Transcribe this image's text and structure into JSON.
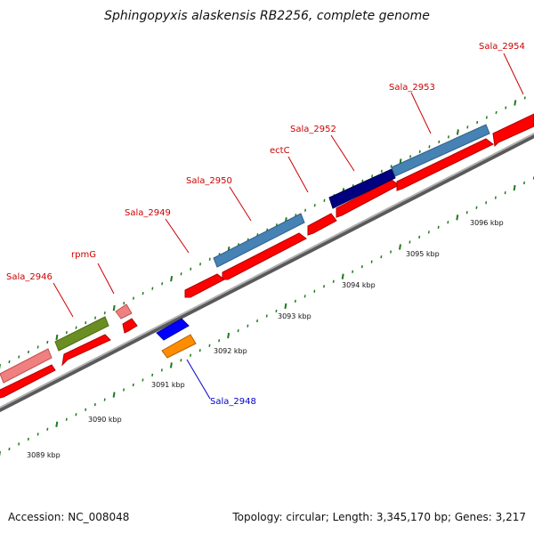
{
  "title": "Sphingopyxis alaskensis RB2256, complete genome",
  "footer": {
    "accession": "Accession: NC_008048",
    "summary": "Topology: circular; Length: 3,345,170 bp; Genes: 3,217"
  },
  "colors": {
    "backbone": "#8c8c8c",
    "tick": "#1e7a1e",
    "cds_forward": "#ff0000",
    "label_default": "#cc0000",
    "label_reverse": "#0000cc"
  },
  "gene_labels": [
    {
      "id": "sala-2946",
      "text": "Sala_2946",
      "color": "#cc0000"
    },
    {
      "id": "rpmg",
      "text": "rpmG",
      "color": "#cc0000"
    },
    {
      "id": "sala-2949",
      "text": "Sala_2949",
      "color": "#cc0000"
    },
    {
      "id": "sala-2950",
      "text": "Sala_2950",
      "color": "#cc0000"
    },
    {
      "id": "ectc",
      "text": "ectC",
      "color": "#cc0000"
    },
    {
      "id": "sala-2952",
      "text": "Sala_2952",
      "color": "#cc0000"
    },
    {
      "id": "sala-2953",
      "text": "Sala_2953",
      "color": "#cc0000"
    },
    {
      "id": "sala-2954",
      "text": "Sala_2954",
      "color": "#cc0000"
    },
    {
      "id": "sala-2948",
      "text": "Sala_2948",
      "color": "#0000cc"
    }
  ],
  "scale_labels": [
    "3089 kbp",
    "3090 kbp",
    "3091 kbp",
    "3092 kbp",
    "3093 kbp",
    "3094 kbp",
    "3095 kbp",
    "3096 kbp"
  ]
}
